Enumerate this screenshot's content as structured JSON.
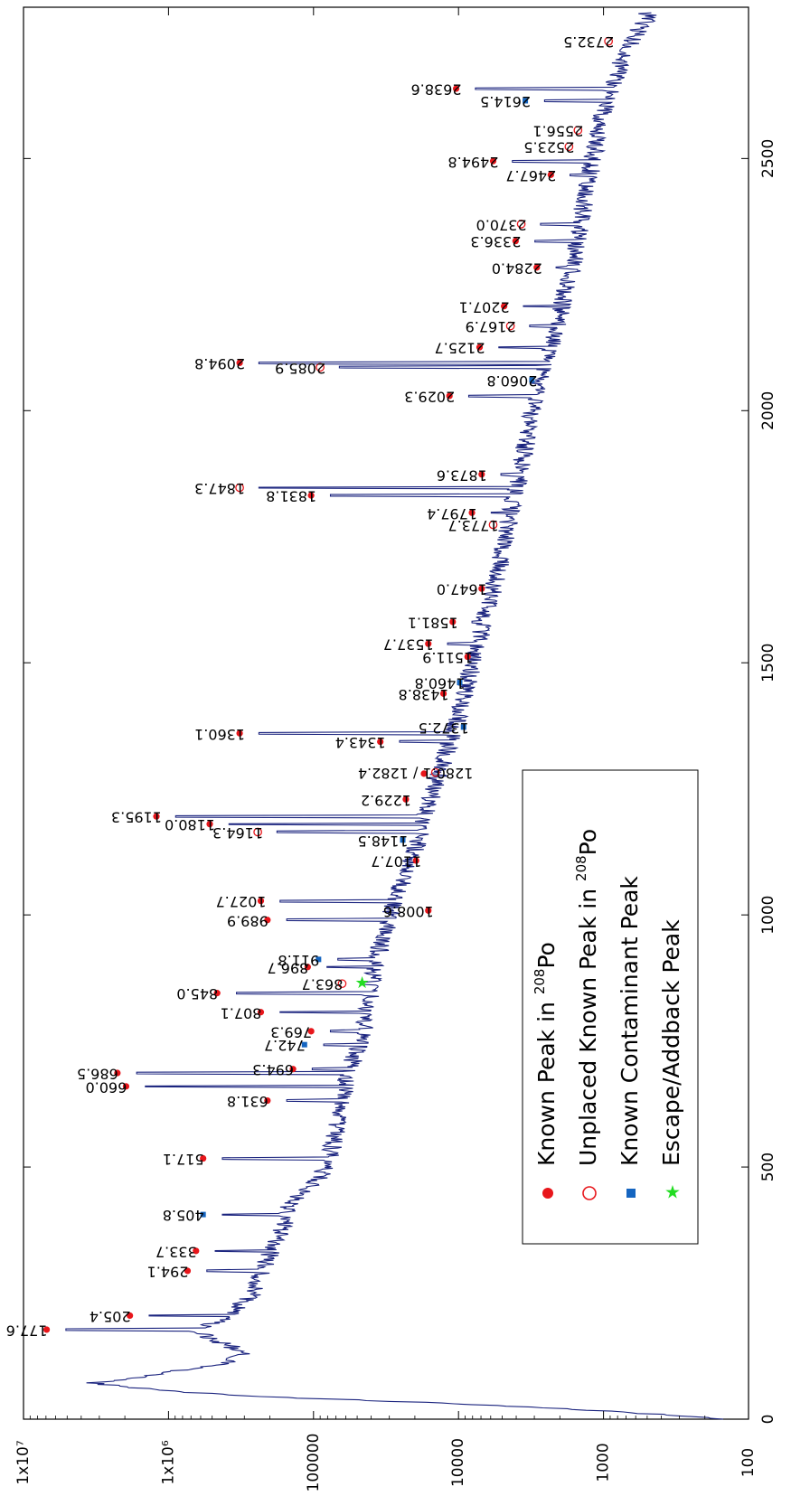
{
  "chart_data": {
    "type": "line",
    "title": "",
    "xlabel": "",
    "ylabel": "",
    "x_scale": "linear",
    "y_scale": "log",
    "xlim": [
      0,
      2800
    ],
    "ylim": [
      100,
      10000000
    ],
    "x_ticks": [
      "0",
      "500",
      "1000",
      "1500",
      "2000",
      "2500"
    ],
    "y_ticks": [
      "100",
      "1000",
      "10000",
      "100000",
      "1x10⁶",
      "1x10⁷"
    ],
    "series_color": "#1a237e",
    "spectrum": {
      "x": [
        0,
        15,
        25,
        35,
        45,
        55,
        65,
        72,
        80,
        88,
        95,
        102,
        110,
        120,
        130,
        140,
        150,
        160,
        170,
        178,
        190,
        200,
        220,
        250,
        290,
        330,
        360,
        390,
        420,
        450,
        480,
        517,
        540,
        580,
        620,
        660,
        700,
        740,
        780,
        820,
        860,
        900,
        950,
        1000,
        1050,
        1100,
        1150,
        1200,
        1250,
        1300,
        1350,
        1400,
        1450,
        1500,
        1550,
        1600,
        1650,
        1700,
        1750,
        1800,
        1850,
        1900,
        1950,
        2000,
        2050,
        2100,
        2150,
        2200,
        2250,
        2300,
        2350,
        2400,
        2450,
        2500,
        2550,
        2600,
        2650,
        2700,
        2750,
        2780
      ],
      "y": [
        150,
        800,
        4000,
        25000,
        250000,
        900000,
        2200000,
        3300000,
        1800000,
        1400000,
        900000,
        600000,
        420000,
        350000,
        320000,
        350000,
        420000,
        520000,
        600000,
        700000,
        500000,
        420000,
        350000,
        260000,
        230000,
        200000,
        180000,
        160000,
        150000,
        120000,
        90000,
        80000,
        75000,
        70000,
        65000,
        62000,
        56000,
        50000,
        45000,
        42000,
        40000,
        38000,
        34000,
        30000,
        26000,
        22000,
        19000,
        17000,
        15000,
        13000,
        11500,
        10000,
        9000,
        8000,
        7200,
        6500,
        5800,
        5200,
        4800,
        4400,
        4000,
        3700,
        3400,
        3100,
        2800,
        2500,
        2200,
        2000,
        1800,
        1600,
        1500,
        1400,
        1300,
        1200,
        1100,
        1000,
        850,
        750,
        600,
        500
      ]
    },
    "peaks": [
      {
        "x": 177.6,
        "y": 6000000,
        "label": "177.6",
        "type": "known"
      },
      {
        "x": 205.4,
        "y": 1600000,
        "label": "205.4",
        "type": "known"
      },
      {
        "x": 294.1,
        "y": 640000,
        "label": "294.1",
        "type": "known"
      },
      {
        "x": 333.7,
        "y": 560000,
        "label": "333.7",
        "type": "known"
      },
      {
        "x": 405.8,
        "y": 500000,
        "label": "405.8",
        "type": "contaminant"
      },
      {
        "x": 517.1,
        "y": 500000,
        "label": "517.1",
        "type": "known"
      },
      {
        "x": 631.8,
        "y": 180000,
        "label": "631.8",
        "type": "known"
      },
      {
        "x": 660.0,
        "y": 1700000,
        "label": "660.0",
        "type": "known"
      },
      {
        "x": 686.5,
        "y": 1950000,
        "label": "686.5",
        "type": "known"
      },
      {
        "x": 694.3,
        "y": 120000,
        "label": "694.3",
        "type": "known"
      },
      {
        "x": 742.7,
        "y": 100000,
        "label": "742.7",
        "type": "contaminant"
      },
      {
        "x": 769.3,
        "y": 90000,
        "label": "769.3",
        "type": "known"
      },
      {
        "x": 807.1,
        "y": 200000,
        "label": "807.1",
        "type": "known"
      },
      {
        "x": 845.0,
        "y": 400000,
        "label": "845.0",
        "type": "known"
      },
      {
        "x": 863.7,
        "y": 55000,
        "label": "863.7",
        "type": "unplaced"
      },
      {
        "x": 863.7,
        "y": 40000,
        "label": "",
        "type": "escape"
      },
      {
        "x": 896.7,
        "y": 95000,
        "label": "896.7",
        "type": "known"
      },
      {
        "x": 911.8,
        "y": 80000,
        "label": "911.8",
        "type": "contaminant"
      },
      {
        "x": 989.9,
        "y": 180000,
        "label": "989.9",
        "type": "known"
      },
      {
        "x": 1008.6,
        "y": 14000,
        "label": "1008.6",
        "type": "known"
      },
      {
        "x": 1027.7,
        "y": 200000,
        "label": "1027.7",
        "type": "known"
      },
      {
        "x": 1107.7,
        "y": 17000,
        "label": "1107.7",
        "type": "known"
      },
      {
        "x": 1148.5,
        "y": 21000,
        "label": "1148.5",
        "type": "contaminant"
      },
      {
        "x": 1164.3,
        "y": 210000,
        "label": "1164.3",
        "type": "unplaced"
      },
      {
        "x": 1180.0,
        "y": 450000,
        "label": "1180.0",
        "type": "known"
      },
      {
        "x": 1195.3,
        "y": 1050000,
        "label": "1195.3",
        "type": "known"
      },
      {
        "x": 1229.2,
        "y": 20000,
        "label": "1229.2",
        "type": "known"
      },
      {
        "x": 1280.1,
        "y": 15000,
        "label": "",
        "type": "known"
      },
      {
        "x": 1282.4,
        "y": 12500,
        "label": "1280.1 / 1282.4",
        "type": "unplaced"
      },
      {
        "x": 1343.4,
        "y": 30000,
        "label": "1343.4",
        "type": "known"
      },
      {
        "x": 1360.1,
        "y": 280000,
        "label": "1360.1",
        "type": "known"
      },
      {
        "x": 1372.5,
        "y": 8000,
        "label": "1372.5",
        "type": "contaminant"
      },
      {
        "x": 1438.8,
        "y": 11000,
        "label": "1438.8",
        "type": "known"
      },
      {
        "x": 1460.8,
        "y": 8500,
        "label": "1460.8",
        "type": "contaminant"
      },
      {
        "x": 1511.9,
        "y": 7500,
        "label": "1511.9",
        "type": "known"
      },
      {
        "x": 1537.7,
        "y": 14000,
        "label": "1537.7",
        "type": "known"
      },
      {
        "x": 1581.1,
        "y": 9500,
        "label": "1581.1",
        "type": "known"
      },
      {
        "x": 1647.0,
        "y": 6000,
        "label": "1647.0",
        "type": "known"
      },
      {
        "x": 1773.7,
        "y": 5000,
        "label": "1773.7",
        "type": "unplaced"
      },
      {
        "x": 1797.4,
        "y": 7000,
        "label": "1797.4",
        "type": "known"
      },
      {
        "x": 1831.8,
        "y": 90000,
        "label": "1831.8",
        "type": "known"
      },
      {
        "x": 1847.3,
        "y": 280000,
        "label": "1847.3",
        "type": "unplaced"
      },
      {
        "x": 1873.6,
        "y": 6000,
        "label": "1873.6",
        "type": "known"
      },
      {
        "x": 2029.3,
        "y": 10000,
        "label": "2029.3",
        "type": "known"
      },
      {
        "x": 2060.8,
        "y": 2700,
        "label": "2060.8",
        "type": "contaminant"
      },
      {
        "x": 2085.9,
        "y": 78000,
        "label": "2085.9",
        "type": "unplaced"
      },
      {
        "x": 2094.8,
        "y": 280000,
        "label": "2094.8",
        "type": "known"
      },
      {
        "x": 2125.7,
        "y": 6200,
        "label": "2125.7",
        "type": "known"
      },
      {
        "x": 2167.9,
        "y": 3800,
        "label": "2167.9",
        "type": "unplaced"
      },
      {
        "x": 2207.1,
        "y": 4200,
        "label": "2207.1",
        "type": "known"
      },
      {
        "x": 2284.0,
        "y": 2500,
        "label": "2284.0",
        "type": "known"
      },
      {
        "x": 2336.3,
        "y": 3500,
        "label": "2336.3",
        "type": "known"
      },
      {
        "x": 2370.0,
        "y": 3200,
        "label": "2370.0",
        "type": "unplaced"
      },
      {
        "x": 2467.7,
        "y": 2000,
        "label": "2467.7",
        "type": "known"
      },
      {
        "x": 2494.8,
        "y": 5000,
        "label": "2494.8",
        "type": "known"
      },
      {
        "x": 2523.5,
        "y": 1500,
        "label": "2523.5",
        "type": "unplaced"
      },
      {
        "x": 2556.1,
        "y": 1300,
        "label": "2556.1",
        "type": "unplaced"
      },
      {
        "x": 2614.5,
        "y": 3000,
        "label": "2614.5",
        "type": "contaminant"
      },
      {
        "x": 2638.6,
        "y": 9000,
        "label": "2638.6",
        "type": "known"
      },
      {
        "x": 2732.5,
        "y": 800,
        "label": "2732.5",
        "type": "unplaced"
      }
    ],
    "legend": {
      "placement": "bottom-right",
      "items": [
        {
          "prefix": "Known Peak in ",
          "sup": "208",
          "suffix": "Po",
          "type": "known"
        },
        {
          "prefix": "Unplaced Known Peak in ",
          "sup": "208",
          "suffix": "Po",
          "type": "unplaced"
        },
        {
          "prefix": "Known Contaminant Peak",
          "sup": "",
          "suffix": "",
          "type": "contaminant"
        },
        {
          "prefix": "Escape/Addback Peak",
          "sup": "",
          "suffix": "",
          "type": "escape"
        }
      ]
    },
    "colors": {
      "known": "#e8161b",
      "unplaced": "#e8161b",
      "contaminant": "#1565c0",
      "escape": "#22dd22",
      "axes": "#000000"
    }
  }
}
